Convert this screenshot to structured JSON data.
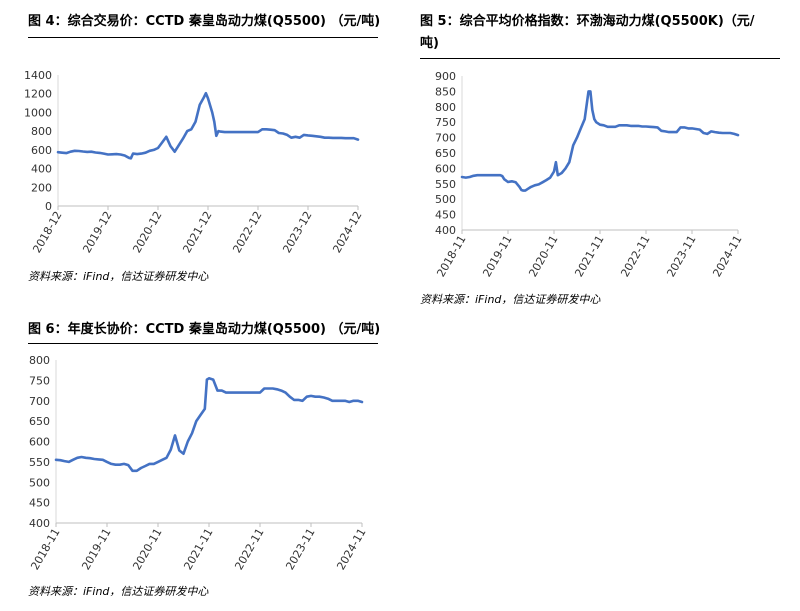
{
  "figures": [
    {
      "title": "图 4：综合交易价：CCTD 秦皇岛动力煤(Q5500) （元/吨)",
      "source": "资料来源：iFind，信达证券研发中心"
    },
    {
      "title": "图 5：综合平均价格指数：环渤海动力煤(Q5500K)（元/",
      "title2": "吨)",
      "source": "资料来源：iFind，信达证券研发中心"
    },
    {
      "title": "图 6：年度长协价：CCTD 秦皇岛动力煤(Q5500) （元/吨)",
      "source": "资料来源：iFind，信达证券研发中心"
    }
  ],
  "chart_data": [
    {
      "type": "line",
      "title": "图 4：综合交易价：CCTD 秦皇岛动力煤(Q5500) （元/吨)",
      "color": "#4472C4",
      "ylim": [
        0,
        1400
      ],
      "yticks": [
        0,
        200,
        400,
        600,
        800,
        1000,
        1200,
        1400
      ],
      "xrange": [
        0,
        72
      ],
      "xticks": [
        0,
        12,
        24,
        36,
        48,
        60,
        72
      ],
      "xtick_labels": [
        "2018-12",
        "2019-12",
        "2020-12",
        "2021-12",
        "2022-12",
        "2023-12",
        "2024-12"
      ],
      "series": [
        {
          "x": [
            0,
            1,
            2,
            3,
            4,
            5,
            6,
            7,
            8,
            9,
            10,
            11,
            12,
            13,
            14,
            15,
            16,
            17,
            17.5,
            18,
            19,
            20,
            21,
            22,
            23,
            24,
            25,
            26,
            27,
            28,
            29,
            30,
            31,
            32,
            33,
            34,
            35,
            35.5,
            36,
            37,
            37.5,
            38,
            38.5,
            39,
            40,
            41,
            42,
            43,
            44,
            45,
            46,
            47,
            48,
            49,
            50,
            51,
            52,
            53,
            54,
            55,
            56,
            57,
            58,
            59,
            60,
            61,
            62,
            63,
            64,
            65,
            66,
            67,
            68,
            69,
            70,
            71,
            72
          ],
          "y": [
            575,
            570,
            565,
            580,
            590,
            588,
            582,
            578,
            580,
            572,
            568,
            560,
            550,
            553,
            555,
            550,
            540,
            515,
            510,
            560,
            555,
            560,
            570,
            590,
            600,
            620,
            680,
            740,
            640,
            580,
            650,
            720,
            800,
            820,
            900,
            1080,
            1160,
            1205,
            1150,
            1000,
            900,
            750,
            800,
            795,
            790,
            790,
            790,
            790,
            790,
            790,
            790,
            790,
            790,
            820,
            820,
            815,
            810,
            780,
            775,
            760,
            730,
            740,
            730,
            760,
            755,
            750,
            745,
            740,
            730,
            730,
            728,
            728,
            728,
            725,
            725,
            725,
            710
          ]
        }
      ]
    },
    {
      "type": "line",
      "title": "图 5：综合平均价格指数：环渤海动力煤(Q5500K)（元/吨)",
      "color": "#4472C4",
      "ylim": [
        400,
        900
      ],
      "yticks": [
        400,
        450,
        500,
        550,
        600,
        650,
        700,
        750,
        800,
        850,
        900
      ],
      "xrange": [
        0,
        72
      ],
      "xticks": [
        0,
        12,
        24,
        36,
        48,
        60,
        72
      ],
      "xtick_labels": [
        "2018-11",
        "2019-11",
        "2020-11",
        "2021-11",
        "2022-11",
        "2023-11",
        "2024-11"
      ],
      "series": [
        {
          "x": [
            0,
            1,
            2,
            3,
            4,
            5,
            6,
            7,
            8,
            9,
            10,
            10.5,
            11,
            12,
            13,
            14,
            15,
            15.5,
            16,
            16.5,
            17,
            18,
            19,
            20,
            21,
            22,
            23,
            23.5,
            24,
            24.5,
            25,
            26,
            27,
            28,
            29,
            30,
            31,
            32,
            33,
            33.5,
            34,
            34.5,
            35,
            36,
            37,
            38,
            39,
            40,
            41,
            42,
            43,
            44,
            45,
            46,
            47,
            48,
            49,
            50,
            51,
            52,
            53,
            54,
            55,
            56,
            57,
            58,
            59,
            60,
            61,
            62,
            63,
            64,
            65,
            66,
            67,
            68,
            69,
            70,
            71,
            72
          ],
          "y": [
            572,
            570,
            572,
            576,
            578,
            578,
            578,
            578,
            578,
            578,
            578,
            575,
            565,
            556,
            558,
            555,
            540,
            530,
            528,
            528,
            532,
            540,
            545,
            548,
            555,
            562,
            570,
            580,
            590,
            620,
            578,
            585,
            600,
            620,
            675,
            700,
            730,
            760,
            850,
            850,
            790,
            760,
            750,
            742,
            740,
            735,
            735,
            735,
            740,
            740,
            740,
            738,
            738,
            738,
            736,
            736,
            735,
            734,
            733,
            722,
            720,
            718,
            718,
            718,
            733,
            733,
            730,
            730,
            728,
            726,
            715,
            712,
            720,
            718,
            716,
            715,
            715,
            715,
            712,
            708
          ]
        }
      ]
    },
    {
      "type": "line",
      "title": "图 6：年度长协价：CCTD 秦皇岛动力煤(Q5500) （元/吨)",
      "color": "#4472C4",
      "ylim": [
        400,
        800
      ],
      "yticks": [
        400,
        450,
        500,
        550,
        600,
        650,
        700,
        750,
        800
      ],
      "xrange": [
        0,
        72
      ],
      "xticks": [
        0,
        12,
        24,
        36,
        48,
        60,
        72
      ],
      "xtick_labels": [
        "2018-11",
        "2019-11",
        "2020-11",
        "2021-11",
        "2022-11",
        "2023-11",
        "2024-11"
      ],
      "series": [
        {
          "x": [
            0,
            1,
            2,
            3,
            4,
            5,
            6,
            7,
            8,
            9,
            10,
            11,
            12,
            13,
            14,
            15,
            16,
            17,
            18,
            19,
            20,
            21,
            22,
            23,
            24,
            25,
            26,
            27,
            28,
            29,
            30,
            31,
            32,
            33,
            34,
            35,
            35.5,
            36,
            37,
            38,
            39,
            40,
            41,
            42,
            43,
            44,
            45,
            46,
            47,
            48,
            49,
            50,
            51,
            52,
            53,
            54,
            55,
            56,
            57,
            58,
            59,
            60,
            61,
            62,
            63,
            64,
            65,
            66,
            67,
            68,
            69,
            70,
            71,
            72
          ],
          "y": [
            555,
            554,
            552,
            550,
            555,
            560,
            562,
            560,
            559,
            557,
            556,
            555,
            550,
            545,
            543,
            543,
            545,
            542,
            528,
            528,
            535,
            540,
            545,
            545,
            550,
            555,
            560,
            580,
            615,
            578,
            570,
            600,
            620,
            650,
            665,
            680,
            752,
            755,
            752,
            725,
            725,
            720,
            720,
            720,
            720,
            720,
            720,
            720,
            720,
            720,
            730,
            730,
            730,
            728,
            725,
            720,
            710,
            702,
            702,
            700,
            710,
            712,
            710,
            710,
            708,
            705,
            700,
            700,
            700,
            700,
            697,
            700,
            700,
            697
          ]
        }
      ]
    }
  ]
}
